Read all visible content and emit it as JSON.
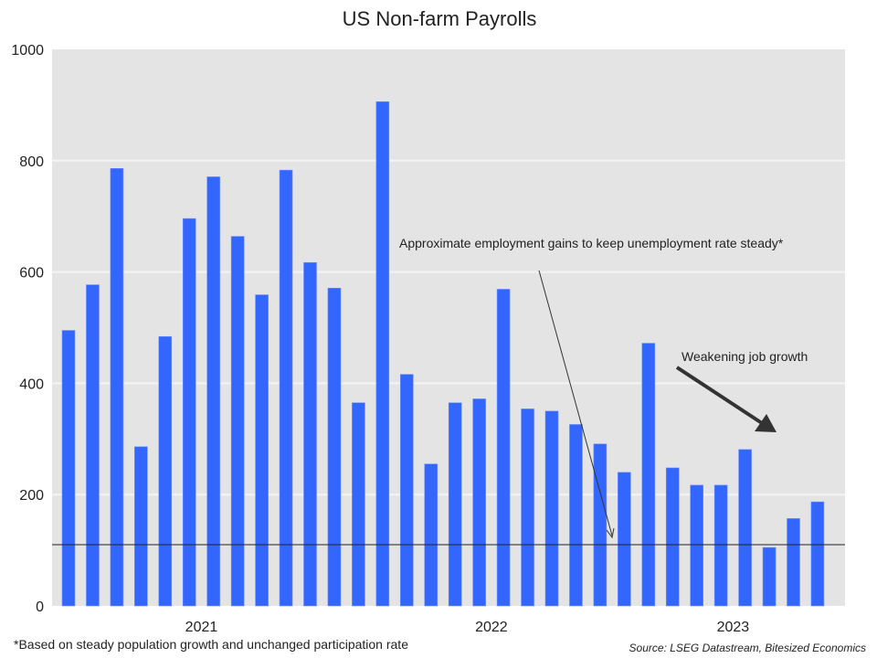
{
  "chart_data": {
    "type": "bar",
    "title": "US Non-farm Payrolls",
    "xlabel": "",
    "ylabel": "",
    "ylim": [
      0,
      1000
    ],
    "yticks": [
      0,
      200,
      400,
      600,
      800,
      1000
    ],
    "xtick_labels": [
      "2021",
      "2022",
      "2023"
    ],
    "grid": "horizontal",
    "background": "#e4e4e4",
    "bar_color": "#3366ff",
    "categories": [
      "2021-01",
      "2021-02",
      "2021-03",
      "2021-04",
      "2021-05",
      "2021-06",
      "2021-07",
      "2021-08",
      "2021-09",
      "2021-10",
      "2021-11",
      "2021-12",
      "2022-01",
      "2022-02",
      "2022-03",
      "2022-04",
      "2022-05",
      "2022-06",
      "2022-07",
      "2022-08",
      "2022-09",
      "2022-10",
      "2022-11",
      "2022-12",
      "2023-01",
      "2023-02",
      "2023-03",
      "2023-04",
      "2023-05",
      "2023-06",
      "2023-07",
      "2023-08"
    ],
    "values": [
      495,
      577,
      786,
      286,
      484,
      696,
      771,
      664,
      559,
      783,
      617,
      571,
      365,
      906,
      416,
      255,
      365,
      372,
      569,
      354,
      350,
      326,
      291,
      240,
      472,
      248,
      217,
      217,
      281,
      105,
      157,
      187
    ],
    "reference_line": {
      "value": 110,
      "label": "Approximate employment gains to keep unemployment rate steady*"
    },
    "annotations": [
      {
        "text": "Weakening job growth"
      }
    ],
    "footnote": "*Based on steady population growth and unchanged participation rate",
    "source": "Source: LSEG Datastream, Bitesized Economics"
  }
}
